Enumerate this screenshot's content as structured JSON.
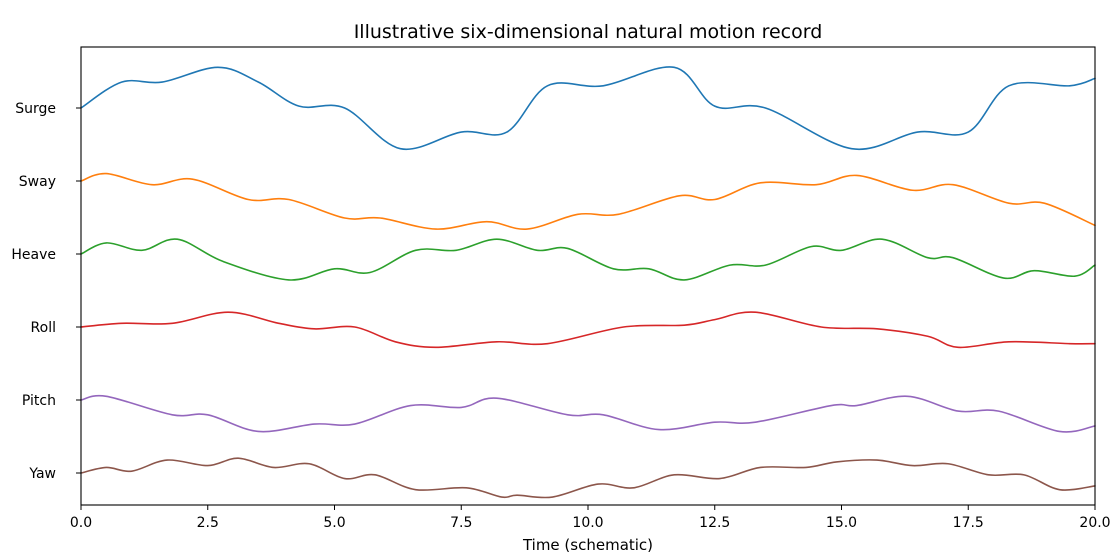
{
  "chart_data": {
    "type": "line",
    "title": "Illustrative six-dimensional natural motion record",
    "xlabel": "Time (schematic)",
    "ylabel": "",
    "xlim": [
      0,
      20
    ],
    "x_ticks": [
      "0.0",
      "2.5",
      "5.0",
      "7.5",
      "10.0",
      "12.5",
      "15.0",
      "17.5",
      "20.0"
    ],
    "x_tick_values": [
      0,
      2.5,
      5,
      7.5,
      10,
      12.5,
      15,
      17.5,
      20
    ],
    "y_categories": [
      "Surge",
      "Sway",
      "Heave",
      "Roll",
      "Pitch",
      "Yaw"
    ],
    "grid": false,
    "legend": "none",
    "series": [
      {
        "name": "Surge",
        "color": "#1f77b4",
        "x": [
          0,
          0.8,
          1.6,
          2.7,
          3.5,
          4.3,
          5.2,
          6.3,
          7.5,
          8.4,
          9.2,
          10.3,
          11.7,
          12.5,
          13.5,
          15.2,
          16.5,
          17.5,
          18.3,
          19.5,
          20
        ],
        "y": [
          0,
          0.7,
          0.7,
          1.1,
          0.7,
          0.05,
          0,
          -1.1,
          -0.65,
          -0.65,
          0.6,
          0.6,
          1.1,
          0.05,
          0,
          -1.1,
          -0.65,
          -0.65,
          0.6,
          0.6,
          0.8
        ]
      },
      {
        "name": "Sway",
        "color": "#ff7f0e",
        "x": [
          0,
          0.5,
          1.4,
          2.2,
          3.3,
          4.1,
          5.2,
          5.9,
          7,
          8,
          8.8,
          9.8,
          10.6,
          11.8,
          12.5,
          13.4,
          14.5,
          15.3,
          16.4,
          17.2,
          18.3,
          19,
          20
        ],
        "y": [
          0,
          0.2,
          -0.1,
          0.05,
          -0.5,
          -0.5,
          -1.0,
          -1.0,
          -1.3,
          -1.1,
          -1.3,
          -0.9,
          -0.9,
          -0.4,
          -0.5,
          -0.05,
          -0.1,
          0.15,
          -0.25,
          -0.1,
          -0.6,
          -0.6,
          -1.2
        ]
      },
      {
        "name": "Heave",
        "color": "#2ca02c",
        "x": [
          0,
          0.5,
          1.2,
          1.9,
          2.8,
          4.1,
          5,
          5.7,
          6.6,
          7.4,
          8.2,
          9,
          9.6,
          10.5,
          11.2,
          11.9,
          12.8,
          13.5,
          14.4,
          15,
          15.8,
          16.7,
          17.2,
          18.2,
          18.8,
          19.6,
          20
        ],
        "y": [
          0,
          0.3,
          0.1,
          0.4,
          -0.2,
          -0.7,
          -0.4,
          -0.5,
          0.1,
          0.1,
          0.4,
          0.1,
          0.15,
          -0.4,
          -0.4,
          -0.7,
          -0.3,
          -0.3,
          0.2,
          0.1,
          0.4,
          -0.1,
          -0.1,
          -0.65,
          -0.45,
          -0.6,
          -0.3
        ]
      },
      {
        "name": "Roll",
        "color": "#d62728",
        "x": [
          0,
          0.8,
          1.8,
          2.9,
          3.9,
          4.6,
          5.4,
          6.2,
          7,
          8.2,
          9.2,
          10.7,
          11.9,
          12.5,
          13.3,
          14.6,
          15.7,
          16.7,
          17.3,
          18.3,
          19.5,
          20
        ],
        "y": [
          0,
          0.1,
          0.1,
          0.4,
          0.1,
          -0.05,
          0,
          -0.4,
          -0.55,
          -0.4,
          -0.45,
          0,
          0.05,
          0.2,
          0.4,
          0,
          -0.05,
          -0.25,
          -0.55,
          -0.4,
          -0.45,
          -0.45
        ]
      },
      {
        "name": "Pitch",
        "color": "#9467bd",
        "x": [
          0,
          0.5,
          1.8,
          2.5,
          3.5,
          4.6,
          5.4,
          6.5,
          7.5,
          8.2,
          9.6,
          10.3,
          11.4,
          12.5,
          13.3,
          14.8,
          15.3,
          16.3,
          17.3,
          18.1,
          19.3,
          20
        ],
        "y": [
          0,
          0.1,
          -0.4,
          -0.4,
          -0.85,
          -0.65,
          -0.65,
          -0.15,
          -0.2,
          0.05,
          -0.4,
          -0.4,
          -0.8,
          -0.6,
          -0.6,
          -0.15,
          -0.15,
          0.1,
          -0.3,
          -0.3,
          -0.85,
          -0.7
        ]
      },
      {
        "name": "Yaw",
        "color": "#8c564b",
        "x": [
          0,
          0.5,
          1,
          1.7,
          2.5,
          3.1,
          3.8,
          4.5,
          5.2,
          5.8,
          6.6,
          7.6,
          8.3,
          8.6,
          9.3,
          10.2,
          10.9,
          11.7,
          12.6,
          13.4,
          14.3,
          14.9,
          15.7,
          16.4,
          17.1,
          17.9,
          18.6,
          19.3,
          20
        ],
        "y": [
          0,
          0.15,
          0.05,
          0.35,
          0.2,
          0.4,
          0.15,
          0.25,
          -0.15,
          -0.05,
          -0.45,
          -0.4,
          -0.65,
          -0.6,
          -0.65,
          -0.3,
          -0.4,
          -0.05,
          -0.15,
          0.15,
          0.15,
          0.3,
          0.35,
          0.2,
          0.25,
          -0.05,
          -0.05,
          -0.45,
          -0.35
        ]
      }
    ]
  }
}
